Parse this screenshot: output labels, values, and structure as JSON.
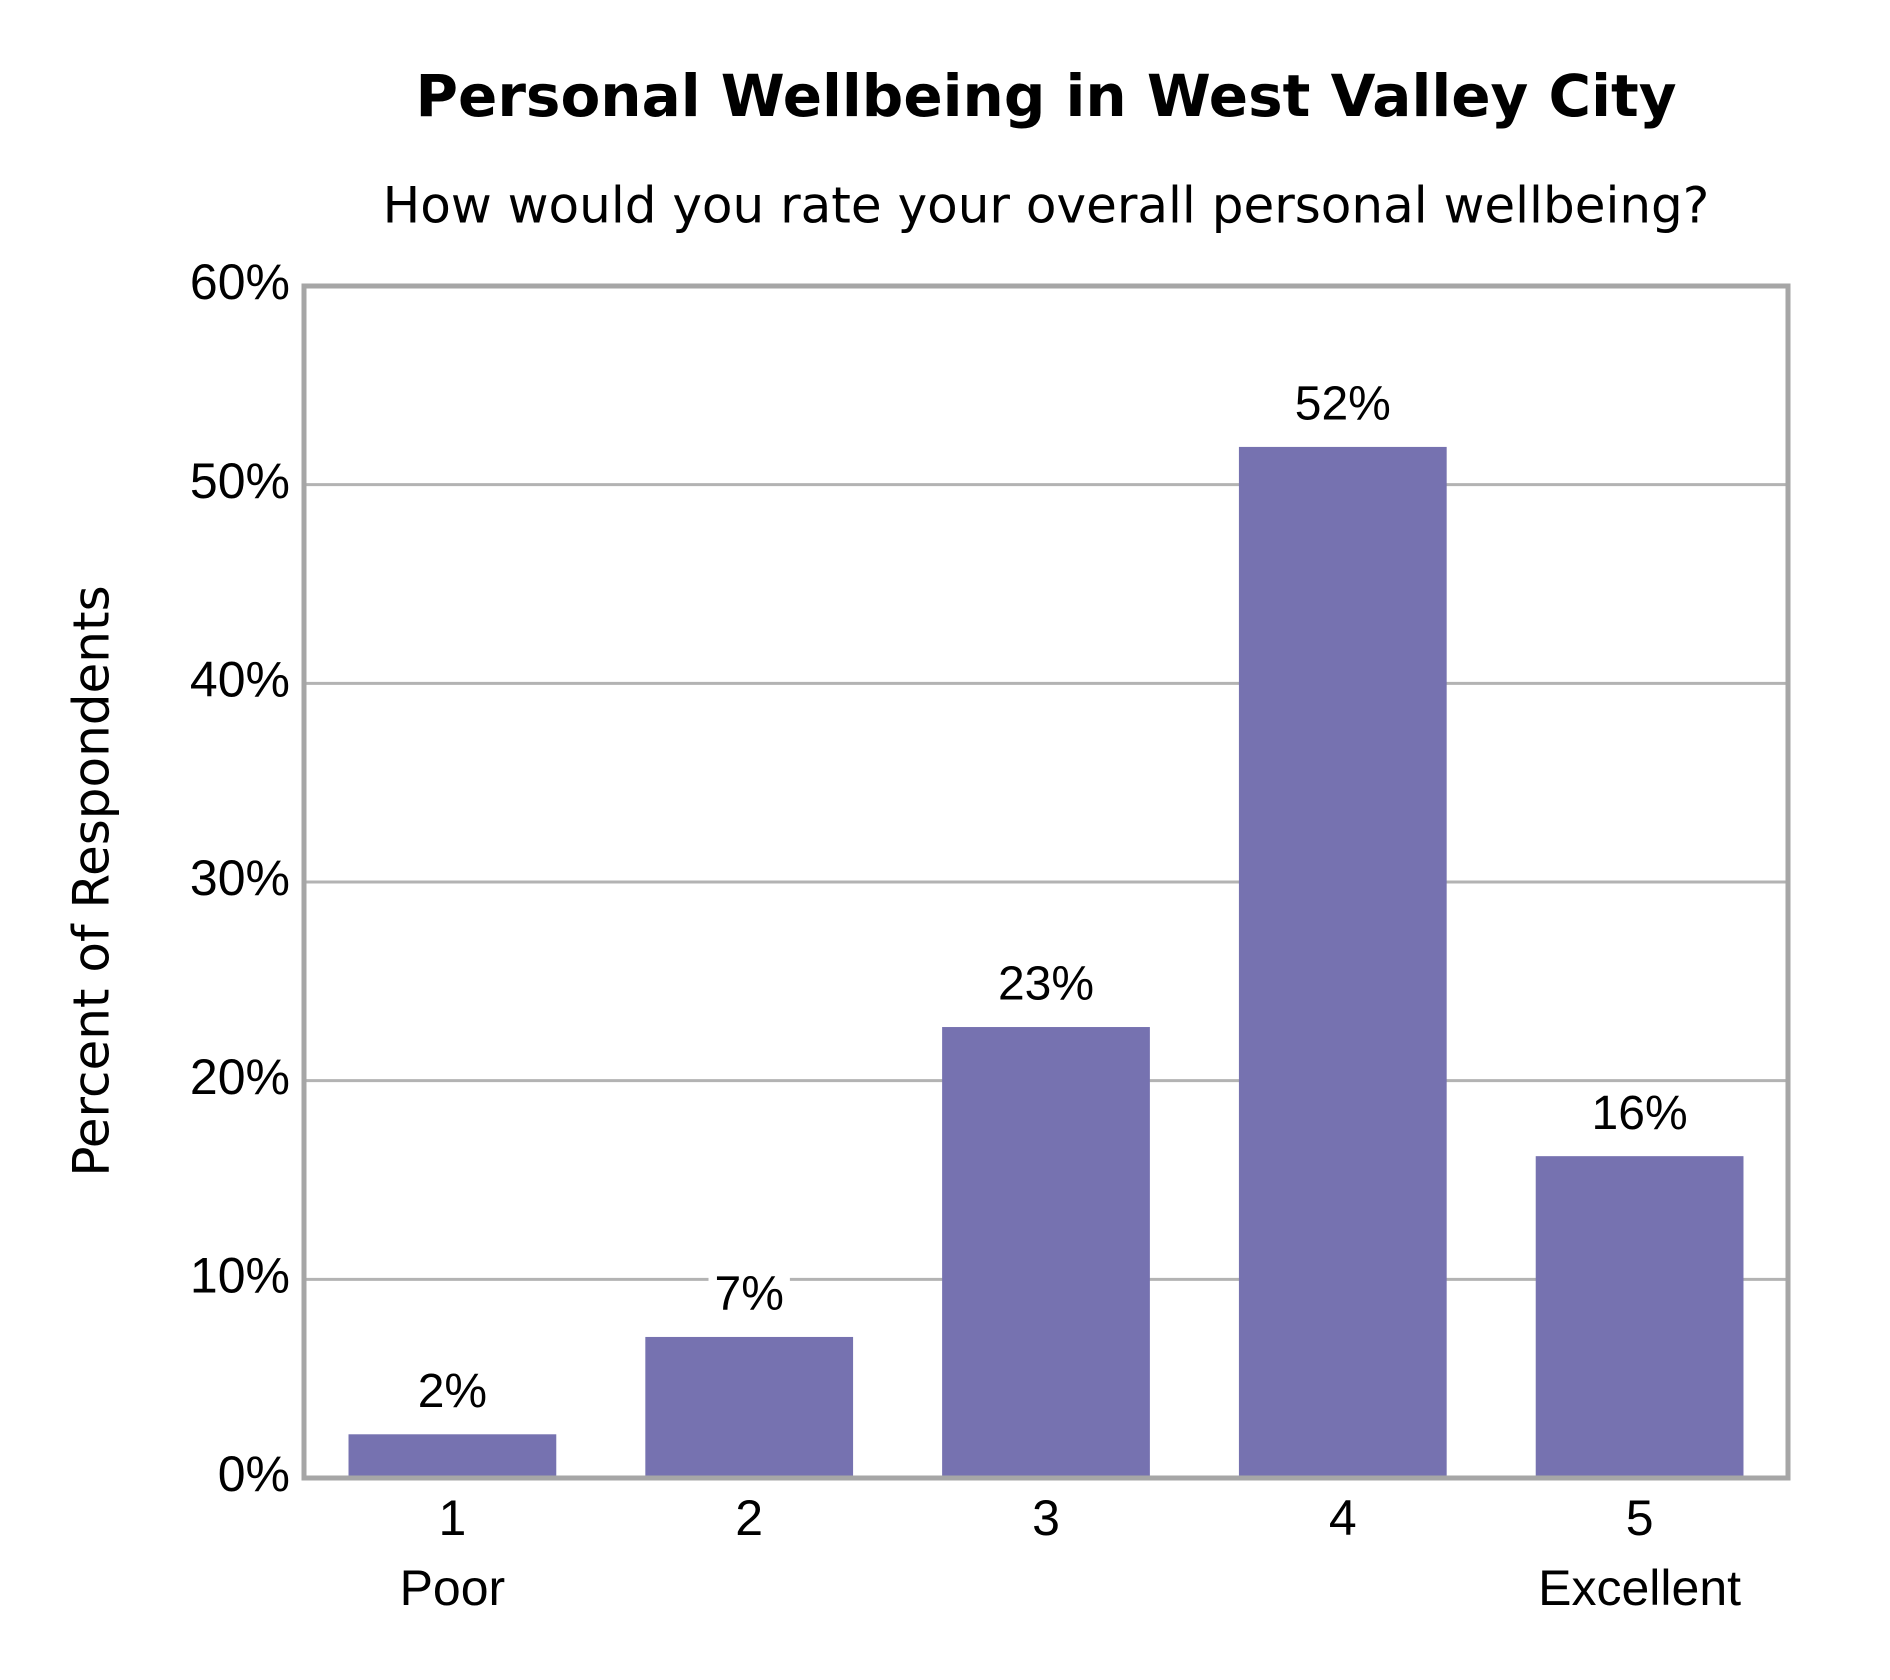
{
  "chart_data": {
    "type": "bar",
    "title": "Personal Wellbeing in West Valley City",
    "subtitle": "How would you rate your overall personal wellbeing?",
    "y_label": "Percent of Respondents",
    "categories": [
      "1",
      "2",
      "3",
      "4",
      "5"
    ],
    "category_sublabels": [
      "Poor",
      null,
      null,
      null,
      "Excellent"
    ],
    "values": [
      2.2,
      7.1,
      22.7,
      51.9,
      16.2
    ],
    "value_labels": [
      "2%",
      "7%",
      "23%",
      "52%",
      "16%"
    ],
    "color": "#7672b0",
    "ylim": [
      0,
      60
    ],
    "yticks": [
      {
        "value": 0,
        "label": "0%"
      },
      {
        "value": 10,
        "label": "10%"
      },
      {
        "value": 20,
        "label": "20%"
      },
      {
        "value": 30,
        "label": "30%"
      },
      {
        "value": 40,
        "label": "40%"
      },
      {
        "value": 50,
        "label": "50%"
      },
      {
        "value": 60,
        "label": "60%"
      }
    ],
    "grid": true
  }
}
